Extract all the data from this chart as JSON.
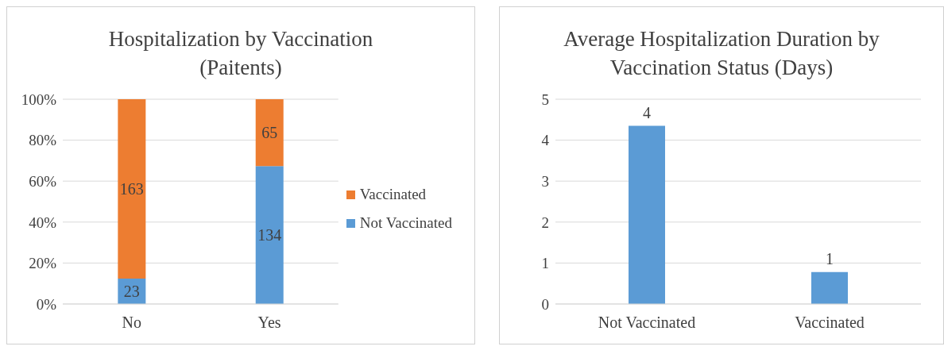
{
  "chart_data": [
    {
      "type": "bar",
      "title": "Hospitalization by Vaccination (Paitents)",
      "categories": [
        "No",
        "Yes"
      ],
      "stacked": true,
      "series": [
        {
          "name": "Not Vaccinated",
          "color": "#5b9bd5",
          "values": [
            12.4,
            67.3
          ]
        },
        {
          "name": "Vaccinated",
          "color": "#ed7d31",
          "values": [
            87.6,
            32.7
          ]
        }
      ],
      "annotations": [
        "23",
        "134",
        "163",
        "65"
      ],
      "ylim": [
        0,
        100
      ],
      "yticks": [
        {
          "value": 0,
          "label": "0%"
        },
        {
          "value": 20,
          "label": "20%"
        },
        {
          "value": 40,
          "label": "40%"
        },
        {
          "value": 60,
          "label": "60%"
        },
        {
          "value": 80,
          "label": "80%"
        },
        {
          "value": 100,
          "label": "100%"
        }
      ],
      "grid": "y",
      "legend": "right"
    },
    {
      "type": "bar",
      "title": "Average Hospitalization Duration by Vaccination Status (Days)",
      "categories": [
        "Not Vaccinated",
        "Vaccinated"
      ],
      "series": [
        {
          "color": "#5b9bd5",
          "values": [
            4.35,
            0.78
          ],
          "value_labels": [
            "4",
            "1"
          ]
        }
      ],
      "ylim": [
        0,
        5
      ],
      "yticks": [
        0,
        1,
        2,
        3,
        4,
        5
      ],
      "grid": "y"
    }
  ]
}
